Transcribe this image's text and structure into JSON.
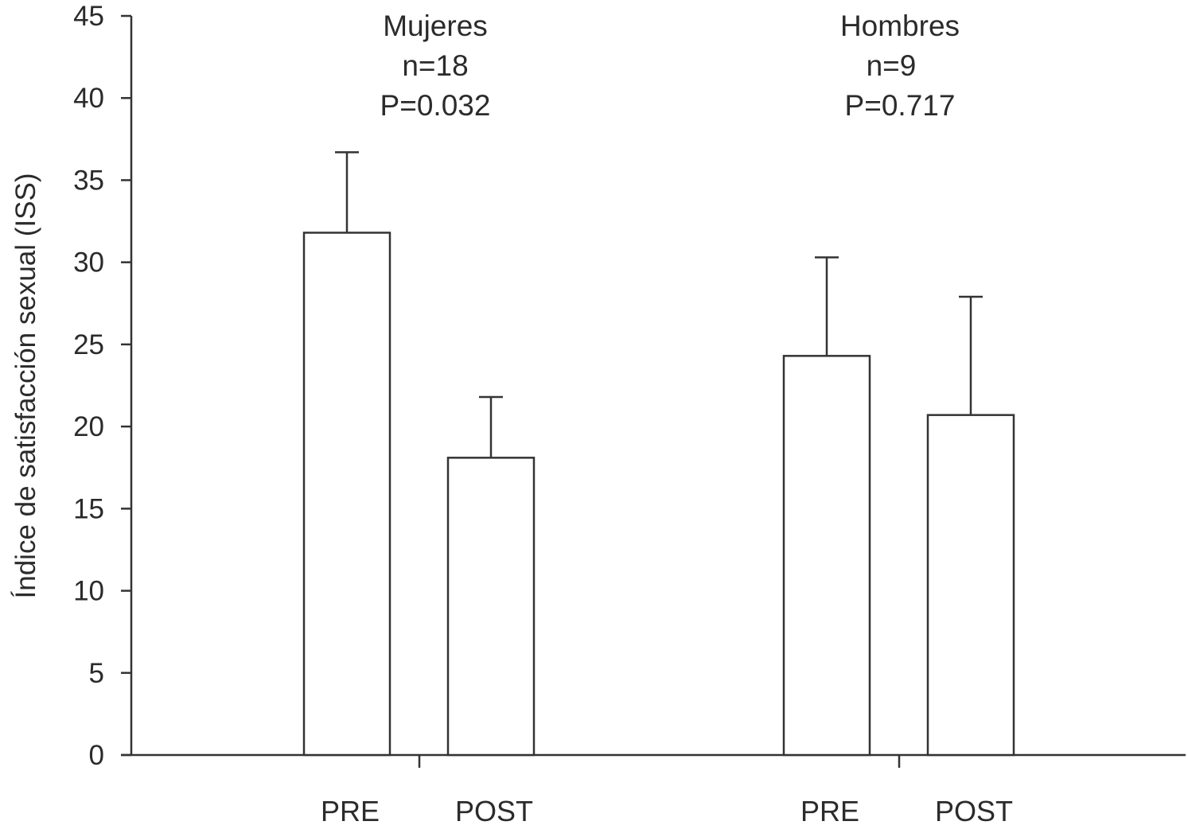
{
  "chart_data": {
    "type": "bar",
    "ylabel": "Índice de satisfacción sexual (ISS)",
    "xlabel": "",
    "ylim": [
      0,
      45
    ],
    "yticks": [
      0,
      5,
      10,
      15,
      20,
      25,
      30,
      35,
      40,
      45
    ],
    "grid": false,
    "colors": {
      "bar_fill": "#ffffff",
      "stroke": "#333333",
      "text": "#2b2b2b"
    },
    "groups": [
      {
        "name": "Mujeres",
        "n_label": "n=18",
        "p_label": "P=0.032",
        "bars": [
          {
            "category": "PRE",
            "value": 31.8,
            "error": 4.9
          },
          {
            "category": "POST",
            "value": 18.1,
            "error": 3.7
          }
        ]
      },
      {
        "name": "Hombres",
        "n_label": "n=9",
        "p_label": "P=0.717",
        "bars": [
          {
            "category": "PRE",
            "value": 24.3,
            "error": 6.0
          },
          {
            "category": "POST",
            "value": 20.7,
            "error": 7.2
          }
        ]
      }
    ]
  }
}
